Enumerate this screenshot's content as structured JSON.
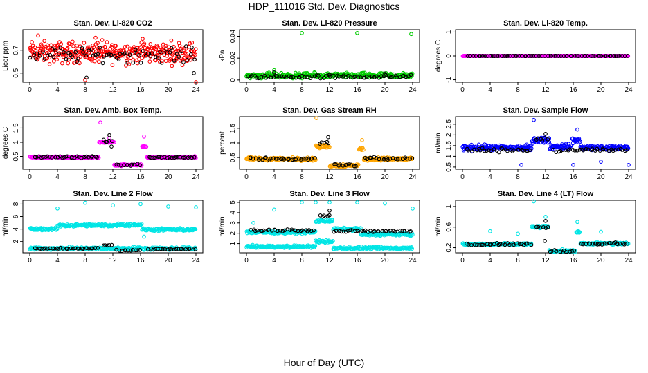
{
  "page": {
    "title": "HDP_111016  Std. Dev. Diagnostics",
    "footer": "Hour of Day (UTC)"
  },
  "chart_data": [
    {
      "type": "scatter",
      "title": "Stan. Dev. Li-820 CO2",
      "ylabel": "Licor ppm",
      "xlim": [
        0,
        24
      ],
      "ylim": [
        0.42,
        0.88
      ],
      "xticks": [
        0,
        4,
        8,
        12,
        16,
        20,
        24
      ],
      "yticks": [
        0.5,
        0.7
      ],
      "colors": [
        "#ff0000",
        "#000000"
      ],
      "series": [
        {
          "name": "",
          "color": "#ff0000",
          "segments": [
            [
              0,
              24,
              0.68
            ]
          ],
          "spread": 0.085,
          "density": 14,
          "outliers": [
            [
              1.2,
              0.83
            ],
            [
              8,
              0.44
            ],
            [
              24,
              0.41
            ],
            [
              9.5,
              0.81
            ],
            [
              16.3,
              0.8
            ]
          ]
        },
        {
          "name": "",
          "color": "#000000",
          "segments": [
            [
              0,
              24,
              0.66
            ]
          ],
          "spread": 0.06,
          "density": 3,
          "outliers": [
            [
              8.2,
              0.46
            ],
            [
              23.7,
              0.5
            ]
          ]
        }
      ]
    },
    {
      "type": "scatter",
      "title": "Stan. Dev. Li-820 Pressure",
      "ylabel": "kPa",
      "xlim": [
        0,
        24
      ],
      "ylim": [
        -0.002,
        0.046
      ],
      "xticks": [
        0,
        4,
        8,
        12,
        16,
        20,
        24
      ],
      "yticks": [
        0,
        0.02,
        0.04
      ],
      "colors": [
        "#00cc00",
        "#000000"
      ],
      "series": [
        {
          "name": "",
          "color": "#00cc00",
          "segments": [
            [
              0,
              24,
              0.004
            ]
          ],
          "spread": 0.0022,
          "density": 14,
          "outliers": [
            [
              8,
              0.043
            ],
            [
              16,
              0.043
            ],
            [
              23.8,
              0.042
            ],
            [
              4,
              0.009
            ]
          ]
        },
        {
          "name": "",
          "color": "#000000",
          "segments": [
            [
              0,
              24,
              0.003
            ]
          ],
          "spread": 0.0015,
          "density": 3,
          "outliers": [
            [
              4,
              0.007
            ],
            [
              12,
              0.005
            ],
            [
              20,
              0.006
            ]
          ]
        }
      ]
    },
    {
      "type": "scatter",
      "title": "Stan. Dev. Li-820 Temp.",
      "ylabel": "degrees C",
      "xlim": [
        0,
        24
      ],
      "ylim": [
        -1.1,
        1.1
      ],
      "xticks": [
        0,
        4,
        8,
        12,
        16,
        20,
        24
      ],
      "yticks": [
        -1,
        0,
        1
      ],
      "colors": [
        "#ff00ff",
        "#000000"
      ],
      "series": [
        {
          "name": "",
          "color": "#ff00ff",
          "segments": [
            [
              0,
              24,
              0
            ]
          ],
          "spread": 0.005,
          "density": 12,
          "outliers": []
        },
        {
          "name": "",
          "color": "#000000",
          "segments": [
            [
              0.5,
              24,
              0
            ]
          ],
          "spread": 0.004,
          "density": 3,
          "outliers": []
        }
      ]
    },
    {
      "type": "scatter",
      "title": "Stan. Dev. Amb. Box Temp.",
      "ylabel": "degrees C",
      "xlim": [
        0,
        24
      ],
      "ylim": [
        0.05,
        1.9
      ],
      "xticks": [
        0,
        4,
        8,
        12,
        16,
        20,
        24
      ],
      "yticks": [
        0.5,
        1,
        1.5
      ],
      "colors": [
        "#ff00ff",
        "#000000"
      ],
      "series": [
        {
          "name": "",
          "color": "#ff00ff",
          "segments": [
            [
              0,
              10,
              0.47
            ],
            [
              10,
              12.2,
              1.0
            ],
            [
              12.2,
              16.2,
              0.2
            ],
            [
              16.2,
              16.9,
              0.85
            ],
            [
              16.9,
              24,
              0.47
            ]
          ],
          "spread": 0.03,
          "density": 12,
          "outliers": [
            [
              10.2,
              1.7
            ],
            [
              11.5,
              1.15
            ],
            [
              16.5,
              1.2
            ]
          ]
        },
        {
          "name": "",
          "color": "#000000",
          "segments": [
            [
              0.5,
              10,
              0.48
            ],
            [
              10.5,
              12,
              1.05
            ],
            [
              12.5,
              16,
              0.2
            ],
            [
              17,
              24,
              0.47
            ]
          ],
          "spread": 0.03,
          "density": 3,
          "outliers": [
            [
              11.5,
              1.25
            ],
            [
              11.8,
              0.85
            ]
          ]
        }
      ]
    },
    {
      "type": "scatter",
      "title": "Stan. Dev. Gas Stream RH",
      "ylabel": "percent",
      "xlim": [
        0,
        24
      ],
      "ylim": [
        0.1,
        1.9
      ],
      "xticks": [
        0,
        4,
        8,
        12,
        16,
        20,
        24
      ],
      "yticks": [
        0.5,
        1,
        1.5
      ],
      "colors": [
        "#ffa500",
        "#000000"
      ],
      "series": [
        {
          "name": "",
          "color": "#ffa500",
          "segments": [
            [
              0,
              10,
              0.45
            ],
            [
              10,
              12,
              0.88
            ],
            [
              12,
              16.2,
              0.23
            ],
            [
              16.2,
              16.9,
              0.8
            ],
            [
              16.9,
              24,
              0.45
            ]
          ],
          "spread": 0.05,
          "density": 14,
          "outliers": [
            [
              10.1,
              1.85
            ],
            [
              16.7,
              1.1
            ]
          ]
        },
        {
          "name": "",
          "color": "#000000",
          "segments": [
            [
              0.5,
              10,
              0.45
            ],
            [
              10.5,
              12,
              1.0
            ],
            [
              12.5,
              16,
              0.24
            ],
            [
              17,
              24,
              0.46
            ]
          ],
          "spread": 0.04,
          "density": 3,
          "outliers": [
            [
              11.8,
              1.2
            ]
          ]
        }
      ]
    },
    {
      "type": "scatter",
      "title": "Stan. Dev. Sample Flow",
      "ylabel": "ml/min",
      "xlim": [
        0,
        24
      ],
      "ylim": [
        0.4,
        2.85
      ],
      "xticks": [
        0,
        4,
        8,
        12,
        16,
        20,
        24
      ],
      "yticks": [
        0.5,
        1,
        1.5,
        2,
        2.5
      ],
      "colors": [
        "#0000ff",
        "#000000"
      ],
      "series": [
        {
          "name": "",
          "color": "#0000ff",
          "segments": [
            [
              0,
              10,
              1.4
            ],
            [
              10,
              12.6,
              1.75
            ],
            [
              12.6,
              15.8,
              1.45
            ],
            [
              15.8,
              17,
              1.75
            ],
            [
              17,
              24,
              1.4
            ]
          ],
          "spread": 0.12,
          "density": 14,
          "outliers": [
            [
              8.5,
              0.6
            ],
            [
              10.3,
              2.7
            ],
            [
              16,
              0.6
            ],
            [
              20,
              0.75
            ],
            [
              24,
              0.6
            ],
            [
              16.6,
              2.25
            ]
          ]
        },
        {
          "name": "",
          "color": "#000000",
          "segments": [
            [
              0.5,
              10,
              1.3
            ],
            [
              10.5,
              12.5,
              1.8
            ],
            [
              13,
              24,
              1.3
            ]
          ],
          "spread": 0.08,
          "density": 3,
          "outliers": [
            [
              12,
              2.05
            ]
          ]
        }
      ]
    },
    {
      "type": "scatter",
      "title": "Stan. Dev. Line 2 Flow",
      "ylabel": "ml/min",
      "xlim": [
        0,
        24
      ],
      "ylim": [
        0.2,
        8.6
      ],
      "xticks": [
        0,
        4,
        8,
        12,
        16,
        20,
        24
      ],
      "yticks": [
        2,
        4,
        6,
        8
      ],
      "colors": [
        "#00e5e5",
        "#000000"
      ],
      "series": [
        {
          "name": "",
          "color": "#00e5e5",
          "segments": [
            [
              0,
              4,
              4.0
            ],
            [
              4,
              12.5,
              4.6
            ],
            [
              12.5,
              16.2,
              4.7
            ],
            [
              16.2,
              24,
              3.9
            ],
            [
              0,
              24,
              0.9
            ]
          ],
          "spread": 0.2,
          "density": 12,
          "outliers": [
            [
              4,
              7.3
            ],
            [
              8,
              8.2
            ],
            [
              12,
              7.8
            ],
            [
              16,
              8
            ],
            [
              20,
              7.6
            ],
            [
              24,
              7.5
            ],
            [
              16.5,
              2.8
            ]
          ]
        },
        {
          "name": "",
          "color": "#000000",
          "segments": [
            [
              0.5,
              10,
              0.9
            ],
            [
              10.5,
              12,
              1.4
            ],
            [
              12.5,
              16,
              0.6
            ],
            [
              17,
              24,
              0.8
            ]
          ],
          "spread": 0.08,
          "density": 3,
          "outliers": []
        }
      ]
    },
    {
      "type": "scatter",
      "title": "Stan. Dev. Line 3 Flow",
      "ylabel": "ml/min",
      "xlim": [
        0,
        24
      ],
      "ylim": [
        0.1,
        5.2
      ],
      "xticks": [
        0,
        4,
        8,
        12,
        16,
        20,
        24
      ],
      "yticks": [
        1,
        2,
        3,
        4,
        5
      ],
      "colors": [
        "#00e5e5",
        "#000000"
      ],
      "series": [
        {
          "name": "",
          "color": "#00e5e5",
          "segments": [
            [
              0,
              10,
              2.1
            ],
            [
              10,
              12.5,
              3.2
            ],
            [
              12.5,
              16.5,
              2.4
            ],
            [
              16.5,
              24,
              1.9
            ],
            [
              0,
              10,
              0.7
            ],
            [
              10,
              12.5,
              1.2
            ],
            [
              12.5,
              24,
              0.55
            ]
          ],
          "spread": 0.12,
          "density": 12,
          "outliers": [
            [
              4,
              4.3
            ],
            [
              8,
              5
            ],
            [
              10,
              5
            ],
            [
              12,
              5
            ],
            [
              16,
              5
            ],
            [
              20,
              4.9
            ],
            [
              24,
              4.4
            ],
            [
              1,
              3
            ]
          ]
        },
        {
          "name": "",
          "color": "#000000",
          "segments": [
            [
              0.5,
              10,
              2.3
            ],
            [
              10.5,
              12.2,
              3.7
            ],
            [
              12.5,
              24,
              2.2
            ]
          ],
          "spread": 0.1,
          "density": 3,
          "outliers": [
            [
              12,
              4.2
            ]
          ]
        }
      ]
    },
    {
      "type": "scatter",
      "title": "Stan. Dev. Line 4 (LT) Flow",
      "ylabel": "ml/min",
      "xlim": [
        0,
        24
      ],
      "ylim": [
        0.1,
        1.12
      ],
      "xticks": [
        0,
        4,
        8,
        12,
        16,
        20,
        24
      ],
      "yticks": [
        0.2,
        0.6,
        1
      ],
      "colors": [
        "#00e5e5",
        "#000000"
      ],
      "series": [
        {
          "name": "",
          "color": "#00e5e5",
          "segments": [
            [
              0,
              10,
              0.27
            ],
            [
              10,
              12.5,
              0.6
            ],
            [
              12.5,
              16.4,
              0.14
            ],
            [
              16.4,
              17,
              0.5
            ],
            [
              17,
              24,
              0.28
            ]
          ],
          "spread": 0.02,
          "density": 12,
          "outliers": [
            [
              4,
              0.52
            ],
            [
              8,
              0.47
            ],
            [
              10.3,
              1.1
            ],
            [
              12,
              0.8
            ],
            [
              20,
              0.51
            ],
            [
              16.6,
              0.7
            ]
          ]
        },
        {
          "name": "",
          "color": "#000000",
          "segments": [
            [
              0.5,
              10,
              0.27
            ],
            [
              10.5,
              12.4,
              0.6
            ],
            [
              12.5,
              16.3,
              0.13
            ],
            [
              17,
              24,
              0.28
            ]
          ],
          "spread": 0.02,
          "density": 3,
          "outliers": [
            [
              12,
              0.72
            ],
            [
              11.9,
              0.33
            ]
          ]
        }
      ]
    }
  ]
}
